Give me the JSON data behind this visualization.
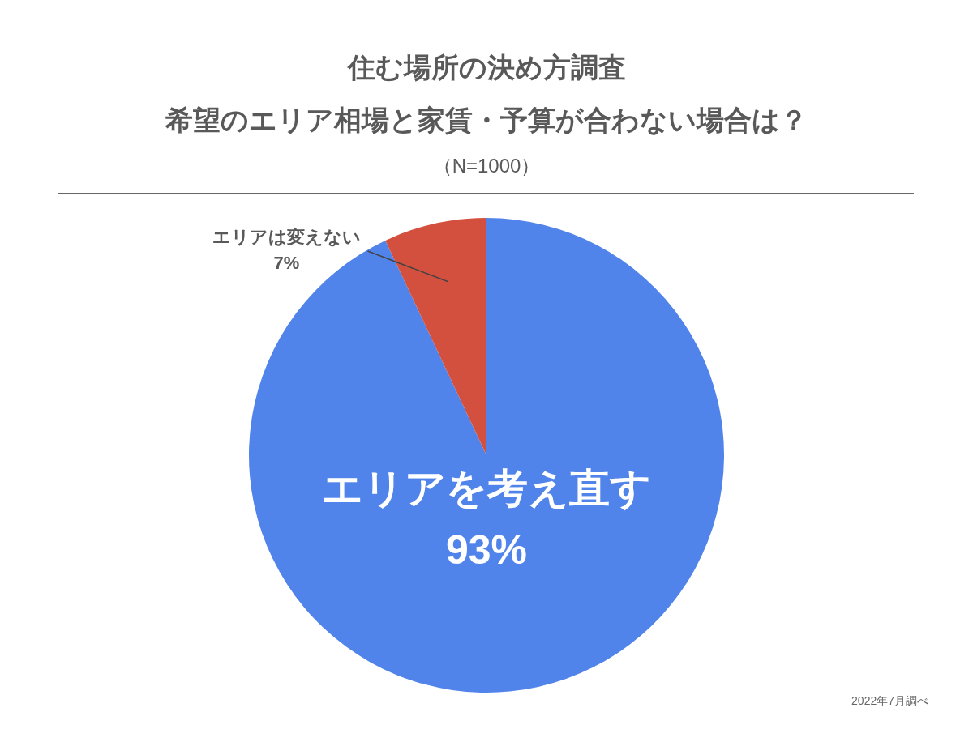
{
  "chart_data": {
    "type": "pie",
    "title": "住む場所の決め方調査",
    "subtitle": "希望のエリア相場と家賃・予算が合わない場合は？",
    "categories": [
      "エリアを考え直す",
      "エリアは変えない"
    ],
    "values": [
      93,
      7
    ],
    "colors": [
      "#5184ea",
      "#d4503e"
    ],
    "value_labels": [
      "93%",
      "7%"
    ],
    "annotations": [
      "（N=1000）",
      "2022年7月調べ"
    ]
  }
}
